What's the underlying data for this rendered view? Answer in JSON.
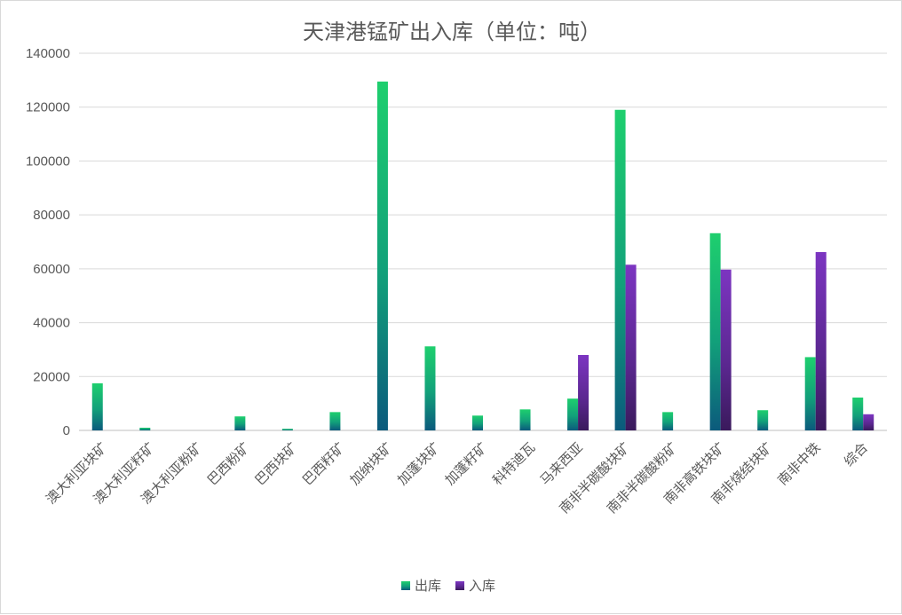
{
  "chart_data": {
    "type": "bar",
    "title": "天津港锰矿出入库（单位：吨）",
    "xlabel": "",
    "ylabel": "",
    "ylim": [
      0,
      140000
    ],
    "yticks": [
      0,
      20000,
      40000,
      60000,
      80000,
      100000,
      120000,
      140000
    ],
    "grid": true,
    "legend_position": "bottom",
    "categories": [
      "澳大利亚块矿",
      "澳大利亚籽矿",
      "澳大利亚粉矿",
      "巴西粉矿",
      "巴西块矿",
      "巴西籽矿",
      "加纳块矿",
      "加蓬块矿",
      "加蓬籽矿",
      "科特迪瓦",
      "马来西亚",
      "南非半碳酸块矿",
      "南非半碳酸粉矿",
      "南非高铁块矿",
      "南非烧结块矿",
      "南非中铁",
      "综合"
    ],
    "series": [
      {
        "name": "出库",
        "color": "#1ecf6e",
        "values": [
          17500,
          1000,
          0,
          5200,
          600,
          6800,
          129500,
          31200,
          5500,
          7800,
          11800,
          119000,
          6800,
          73200,
          7500,
          27200,
          12200
        ]
      },
      {
        "name": "入库",
        "color": "#7c35c1",
        "values": [
          0,
          0,
          0,
          0,
          0,
          0,
          0,
          0,
          0,
          0,
          28000,
          61500,
          0,
          59700,
          0,
          66200,
          6000
        ]
      }
    ]
  }
}
